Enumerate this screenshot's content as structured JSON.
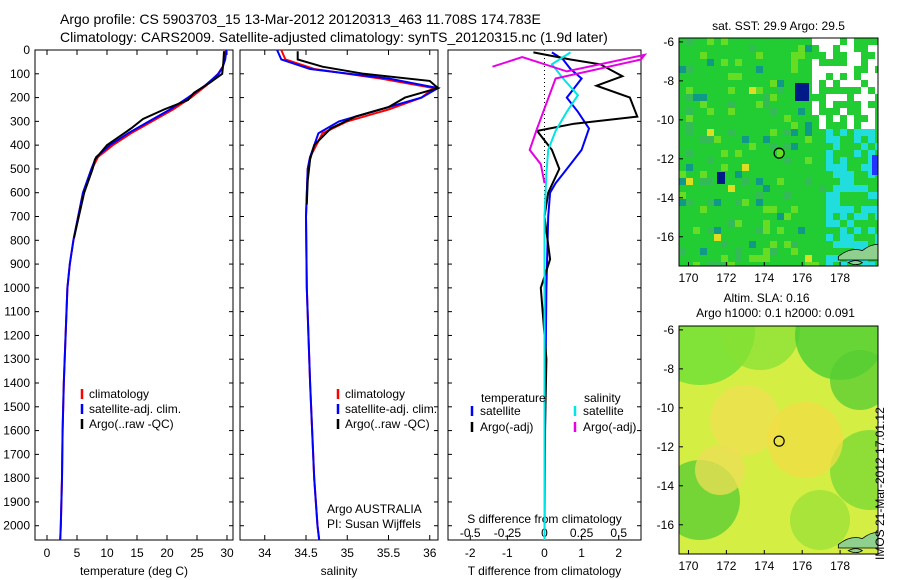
{
  "header": {
    "title_line1": "Argo profile: CS 5903703_15 13-Mar-2012 20120313_463 11.708S 174.783E",
    "title_line2": "Climatology: CARS2009. Satellite-adjusted climatology: synTS_20120315.nc (1.9d later)"
  },
  "footer": {
    "imos_stamp": "IMOS 21-Mar-2012 17:01:12"
  },
  "colors": {
    "climatology": "#ff0000",
    "satellite": "#0000ff",
    "argo": "#000000",
    "salinity_sat": "#00e5e5",
    "salinity_argo": "#e600e6",
    "map_sst_base": "#22cc33",
    "map_sla_base": "#d4ee44"
  },
  "chart_data": [
    {
      "type": "line",
      "name": "temperature",
      "xlabel": "temperature (deg C)",
      "ylabel": "",
      "xlim": [
        -2,
        31
      ],
      "ylim": [
        2060,
        0
      ],
      "xticks": [
        0,
        5,
        10,
        15,
        20,
        25,
        30
      ],
      "yticks": [
        0,
        100,
        200,
        300,
        400,
        500,
        600,
        700,
        800,
        900,
        1000,
        1100,
        1200,
        1300,
        1400,
        1500,
        1600,
        1700,
        1800,
        1900,
        2000
      ],
      "legend": [
        "climatology",
        "satellite-adj. clim.",
        "Argo(..raw -QC)"
      ],
      "series": [
        {
          "name": "climatology",
          "color": "#ff0000",
          "x": [
            29.8,
            29.6,
            29.3,
            28.5,
            26.5,
            24.0,
            21.0,
            17.5,
            14.0,
            11.0,
            8.5,
            7.5,
            6.0,
            5.2,
            4.4,
            3.8,
            3.4,
            3.1,
            2.8,
            2.6,
            2.5,
            2.4,
            2.3,
            2.2
          ],
          "y": [
            0,
            40,
            70,
            100,
            150,
            200,
            250,
            300,
            350,
            400,
            450,
            500,
            600,
            700,
            800,
            900,
            1000,
            1200,
            1400,
            1600,
            1800,
            1900,
            2000,
            2060
          ]
        },
        {
          "name": "satellite-adj. clim.",
          "color": "#0000ff",
          "x": [
            29.9,
            29.7,
            29.3,
            28.6,
            26.3,
            23.5,
            20.5,
            17.0,
            13.5,
            10.5,
            8.2,
            7.4,
            6.0,
            5.2,
            4.4,
            3.8,
            3.4,
            3.1,
            2.8,
            2.6,
            2.5,
            2.4,
            2.3,
            2.2
          ],
          "y": [
            0,
            40,
            70,
            100,
            150,
            200,
            250,
            300,
            350,
            400,
            450,
            500,
            600,
            700,
            800,
            900,
            1000,
            1200,
            1400,
            1600,
            1800,
            1900,
            2000,
            2060
          ]
        },
        {
          "name": "Argo(..raw -QC)",
          "color": "#000000",
          "x": [
            29.5,
            29.4,
            29.2,
            27.0,
            24.5,
            23.5,
            19.5,
            16.0,
            14.0,
            10.0,
            8.0,
            7.6,
            6.2,
            5.3,
            4.5
          ],
          "y": [
            5,
            50,
            100,
            140,
            180,
            210,
            250,
            290,
            330,
            400,
            460,
            500,
            600,
            700,
            790
          ]
        }
      ]
    },
    {
      "type": "line",
      "name": "salinity",
      "xlabel": "salinity",
      "ylabel": "",
      "xlim": [
        33.7,
        36.1
      ],
      "ylim": [
        2060,
        0
      ],
      "xticks": [
        34,
        34.5,
        35,
        35.5,
        36
      ],
      "legend": [
        "climatology",
        "satellite-adj. clim.",
        "Argo(..raw -QC)"
      ],
      "annotation": [
        "Argo AUSTRALIA",
        "PI: Susan Wijffels"
      ],
      "series": [
        {
          "name": "climatology",
          "color": "#ff0000",
          "x": [
            34.2,
            34.25,
            34.6,
            35.4,
            36.05,
            35.9,
            35.5,
            35.0,
            34.7,
            34.55,
            34.52,
            34.5,
            34.51,
            34.55,
            34.6,
            34.64,
            34.66
          ],
          "y": [
            0,
            40,
            80,
            120,
            160,
            200,
            250,
            300,
            350,
            450,
            500,
            700,
            1000,
            1400,
            1800,
            2000,
            2060
          ]
        },
        {
          "name": "satellite-adj. clim.",
          "color": "#0000ff",
          "x": [
            34.15,
            34.2,
            34.55,
            35.5,
            36.1,
            35.9,
            35.4,
            34.9,
            34.65,
            34.55,
            34.52,
            34.5,
            34.51,
            34.55,
            34.6,
            34.64,
            34.66
          ],
          "y": [
            0,
            40,
            80,
            120,
            160,
            200,
            250,
            300,
            350,
            450,
            500,
            700,
            1000,
            1400,
            1800,
            2000,
            2060
          ]
        },
        {
          "name": "Argo(..raw -QC)",
          "color": "#000000",
          "x": [
            34.4,
            34.4,
            34.7,
            35.2,
            36.0,
            36.1,
            35.7,
            35.5,
            35.1,
            34.8,
            34.6,
            34.55,
            34.52,
            34.51
          ],
          "y": [
            5,
            40,
            70,
            100,
            130,
            160,
            200,
            240,
            280,
            330,
            400,
            460,
            550,
            650
          ]
        }
      ]
    },
    {
      "type": "line",
      "name": "difference",
      "xlabel": "T difference from climatology",
      "xlabel_top": "S difference from climatology",
      "ylabel": "",
      "xlim": [
        -2.6,
        2.6
      ],
      "ylim": [
        2060,
        0
      ],
      "xticks": [
        "-2",
        "-1",
        "0",
        "1",
        "2"
      ],
      "xticks_top": [
        "-0.5",
        "-0.25",
        "0",
        "0.25",
        "0.5"
      ],
      "legend_headers": [
        "temperature",
        "salinity"
      ],
      "legend": [
        "satellite",
        "Argo(-adj)",
        "satellite",
        "Argo(-adj)"
      ],
      "series": [
        {
          "name": "satellite",
          "color": "#0000ff",
          "x": [
            0.2,
            0.5,
            0.7,
            1.0,
            0.8,
            0.6,
            0.9,
            1.2,
            1.0,
            0.7,
            0.5,
            0.3,
            0.15,
            0.1,
            0.05,
            0.02,
            0
          ],
          "y": [
            10,
            40,
            80,
            120,
            160,
            200,
            260,
            330,
            420,
            480,
            520,
            560,
            600,
            700,
            1000,
            1500,
            2060
          ]
        },
        {
          "name": "Argo(-adj)",
          "color": "#000000",
          "x": [
            -0.3,
            0.7,
            1.5,
            2.1,
            1.4,
            2.3,
            2.5,
            0.8,
            -0.2,
            0.2,
            0.4,
            0.1,
            0.0,
            0.15,
            -0.1,
            0.05,
            0
          ],
          "y": [
            10,
            40,
            60,
            110,
            150,
            200,
            280,
            310,
            340,
            420,
            500,
            600,
            700,
            880,
            1000,
            1300,
            1700
          ]
        },
        {
          "name": "satellite",
          "color": "#00e5e5",
          "x": [
            0.7,
            0.2,
            0.5,
            0.9,
            0.6,
            0.3,
            0.1,
            0.05,
            0.0,
            0.0
          ],
          "y": [
            10,
            60,
            120,
            190,
            260,
            340,
            420,
            520,
            700,
            2060
          ]
        },
        {
          "name": "Argo(-adj)",
          "color": "#e600e6",
          "x": [
            -1.4,
            -0.6,
            0.6,
            2.7,
            2.6,
            0.3,
            -0.2,
            -0.4,
            -0.1,
            0.0
          ],
          "y": [
            70,
            30,
            90,
            20,
            40,
            120,
            330,
            420,
            480,
            560
          ]
        }
      ]
    },
    {
      "type": "heatmap",
      "name": "sst-map",
      "title": "sat. SST: 29.9  Argo: 29.5",
      "xlim": [
        169.5,
        180
      ],
      "ylim": [
        -17.5,
        -5.8
      ],
      "xticks": [
        170,
        172,
        174,
        176,
        178
      ],
      "yticks": [
        -6,
        -8,
        -10,
        -12,
        -14,
        -16
      ],
      "marker": {
        "lon": 174.783,
        "lat": -11.708
      }
    },
    {
      "type": "heatmap",
      "name": "sla-map",
      "title": "Altim. SLA: 0.16",
      "subtitle": "Argo h1000: 0.1  h2000: 0.091",
      "xlim": [
        169.5,
        180
      ],
      "ylim": [
        -17.5,
        -5.8
      ],
      "xticks": [
        170,
        172,
        174,
        176,
        178
      ],
      "yticks": [
        -6,
        -8,
        -10,
        -12,
        -14,
        -16
      ],
      "marker": {
        "lon": 174.783,
        "lat": -11.708
      }
    }
  ]
}
